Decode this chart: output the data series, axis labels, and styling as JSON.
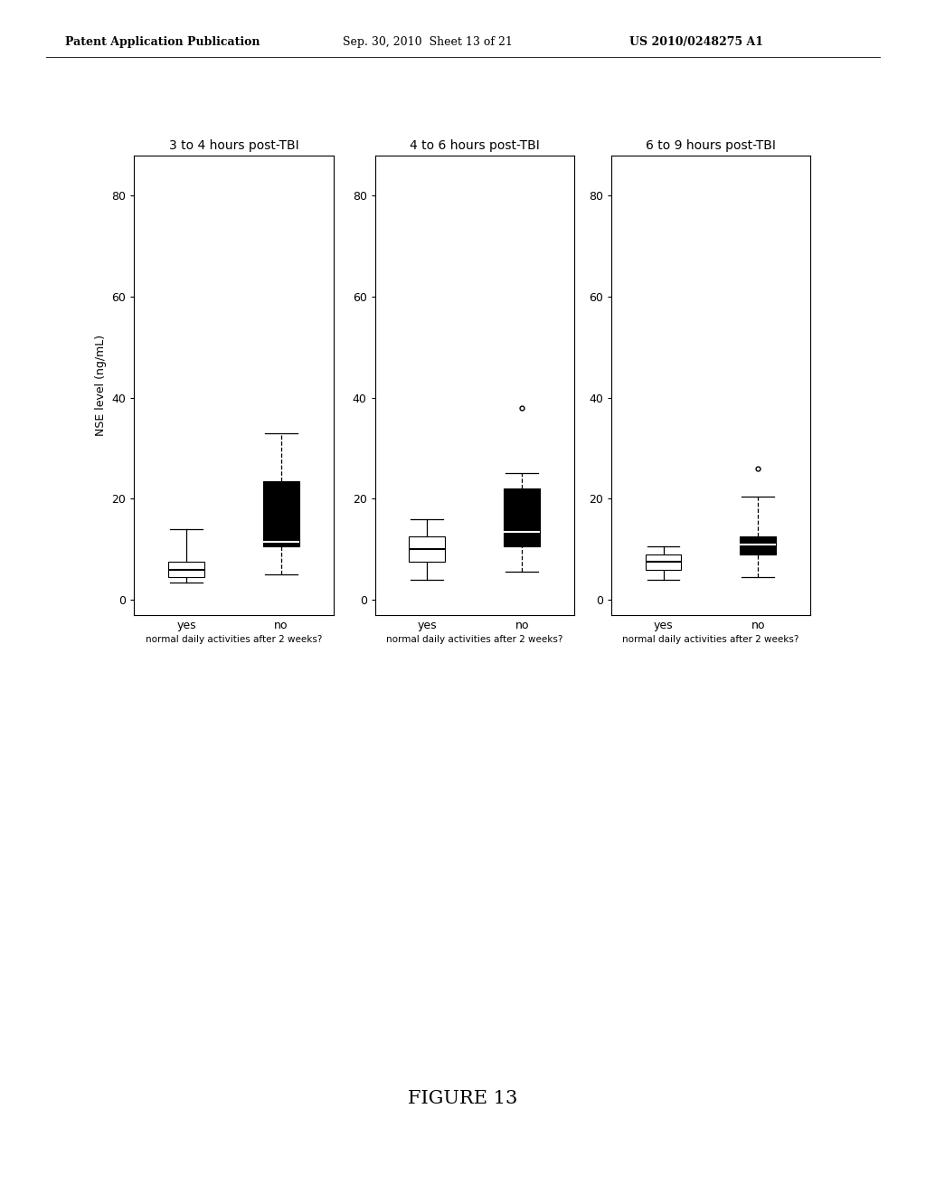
{
  "titles": [
    "3 to 4 hours post-TBI",
    "4 to 6 hours post-TBI",
    "6 to 9 hours post-TBI"
  ],
  "xlabel": "normal daily activities after 2 weeks?",
  "ylabel": "NSE level (ng/mL)",
  "yticks": [
    0,
    20,
    40,
    60,
    80
  ],
  "ylim": [
    -3,
    88
  ],
  "xtick_labels": [
    "yes",
    "no"
  ],
  "header_left": "Patent Application Publication",
  "header_mid": "Sep. 30, 2010  Sheet 13 of 21",
  "header_right": "US 2010/0248275 A1",
  "panels": [
    {
      "yes": {
        "whisker_low": 3.5,
        "q1": 4.5,
        "median": 6.0,
        "q3": 7.5,
        "whisker_high": 14.0,
        "facecolor": "white",
        "outliers": []
      },
      "no": {
        "whisker_low": 5.0,
        "q1": 10.5,
        "median": 11.5,
        "q3": 23.5,
        "whisker_high": 33.0,
        "facecolor": "black",
        "outliers": []
      }
    },
    {
      "yes": {
        "whisker_low": 4.0,
        "q1": 7.5,
        "median": 10.0,
        "q3": 12.5,
        "whisker_high": 16.0,
        "facecolor": "white",
        "outliers": []
      },
      "no": {
        "whisker_low": 5.5,
        "q1": 10.5,
        "median": 13.5,
        "q3": 22.0,
        "whisker_high": 25.0,
        "facecolor": "black",
        "outliers": [
          38.0
        ]
      }
    },
    {
      "yes": {
        "whisker_low": 4.0,
        "q1": 6.0,
        "median": 7.5,
        "q3": 9.0,
        "whisker_high": 10.5,
        "facecolor": "white",
        "outliers": []
      },
      "no": {
        "whisker_low": 4.5,
        "q1": 9.0,
        "median": 11.0,
        "q3": 12.5,
        "whisker_high": 20.5,
        "facecolor": "black",
        "outliers": [
          26.0
        ]
      }
    }
  ],
  "box_width": 0.38,
  "bg_color": "#ffffff",
  "text_color": "#000000",
  "figure_caption": "FIGURE 13"
}
